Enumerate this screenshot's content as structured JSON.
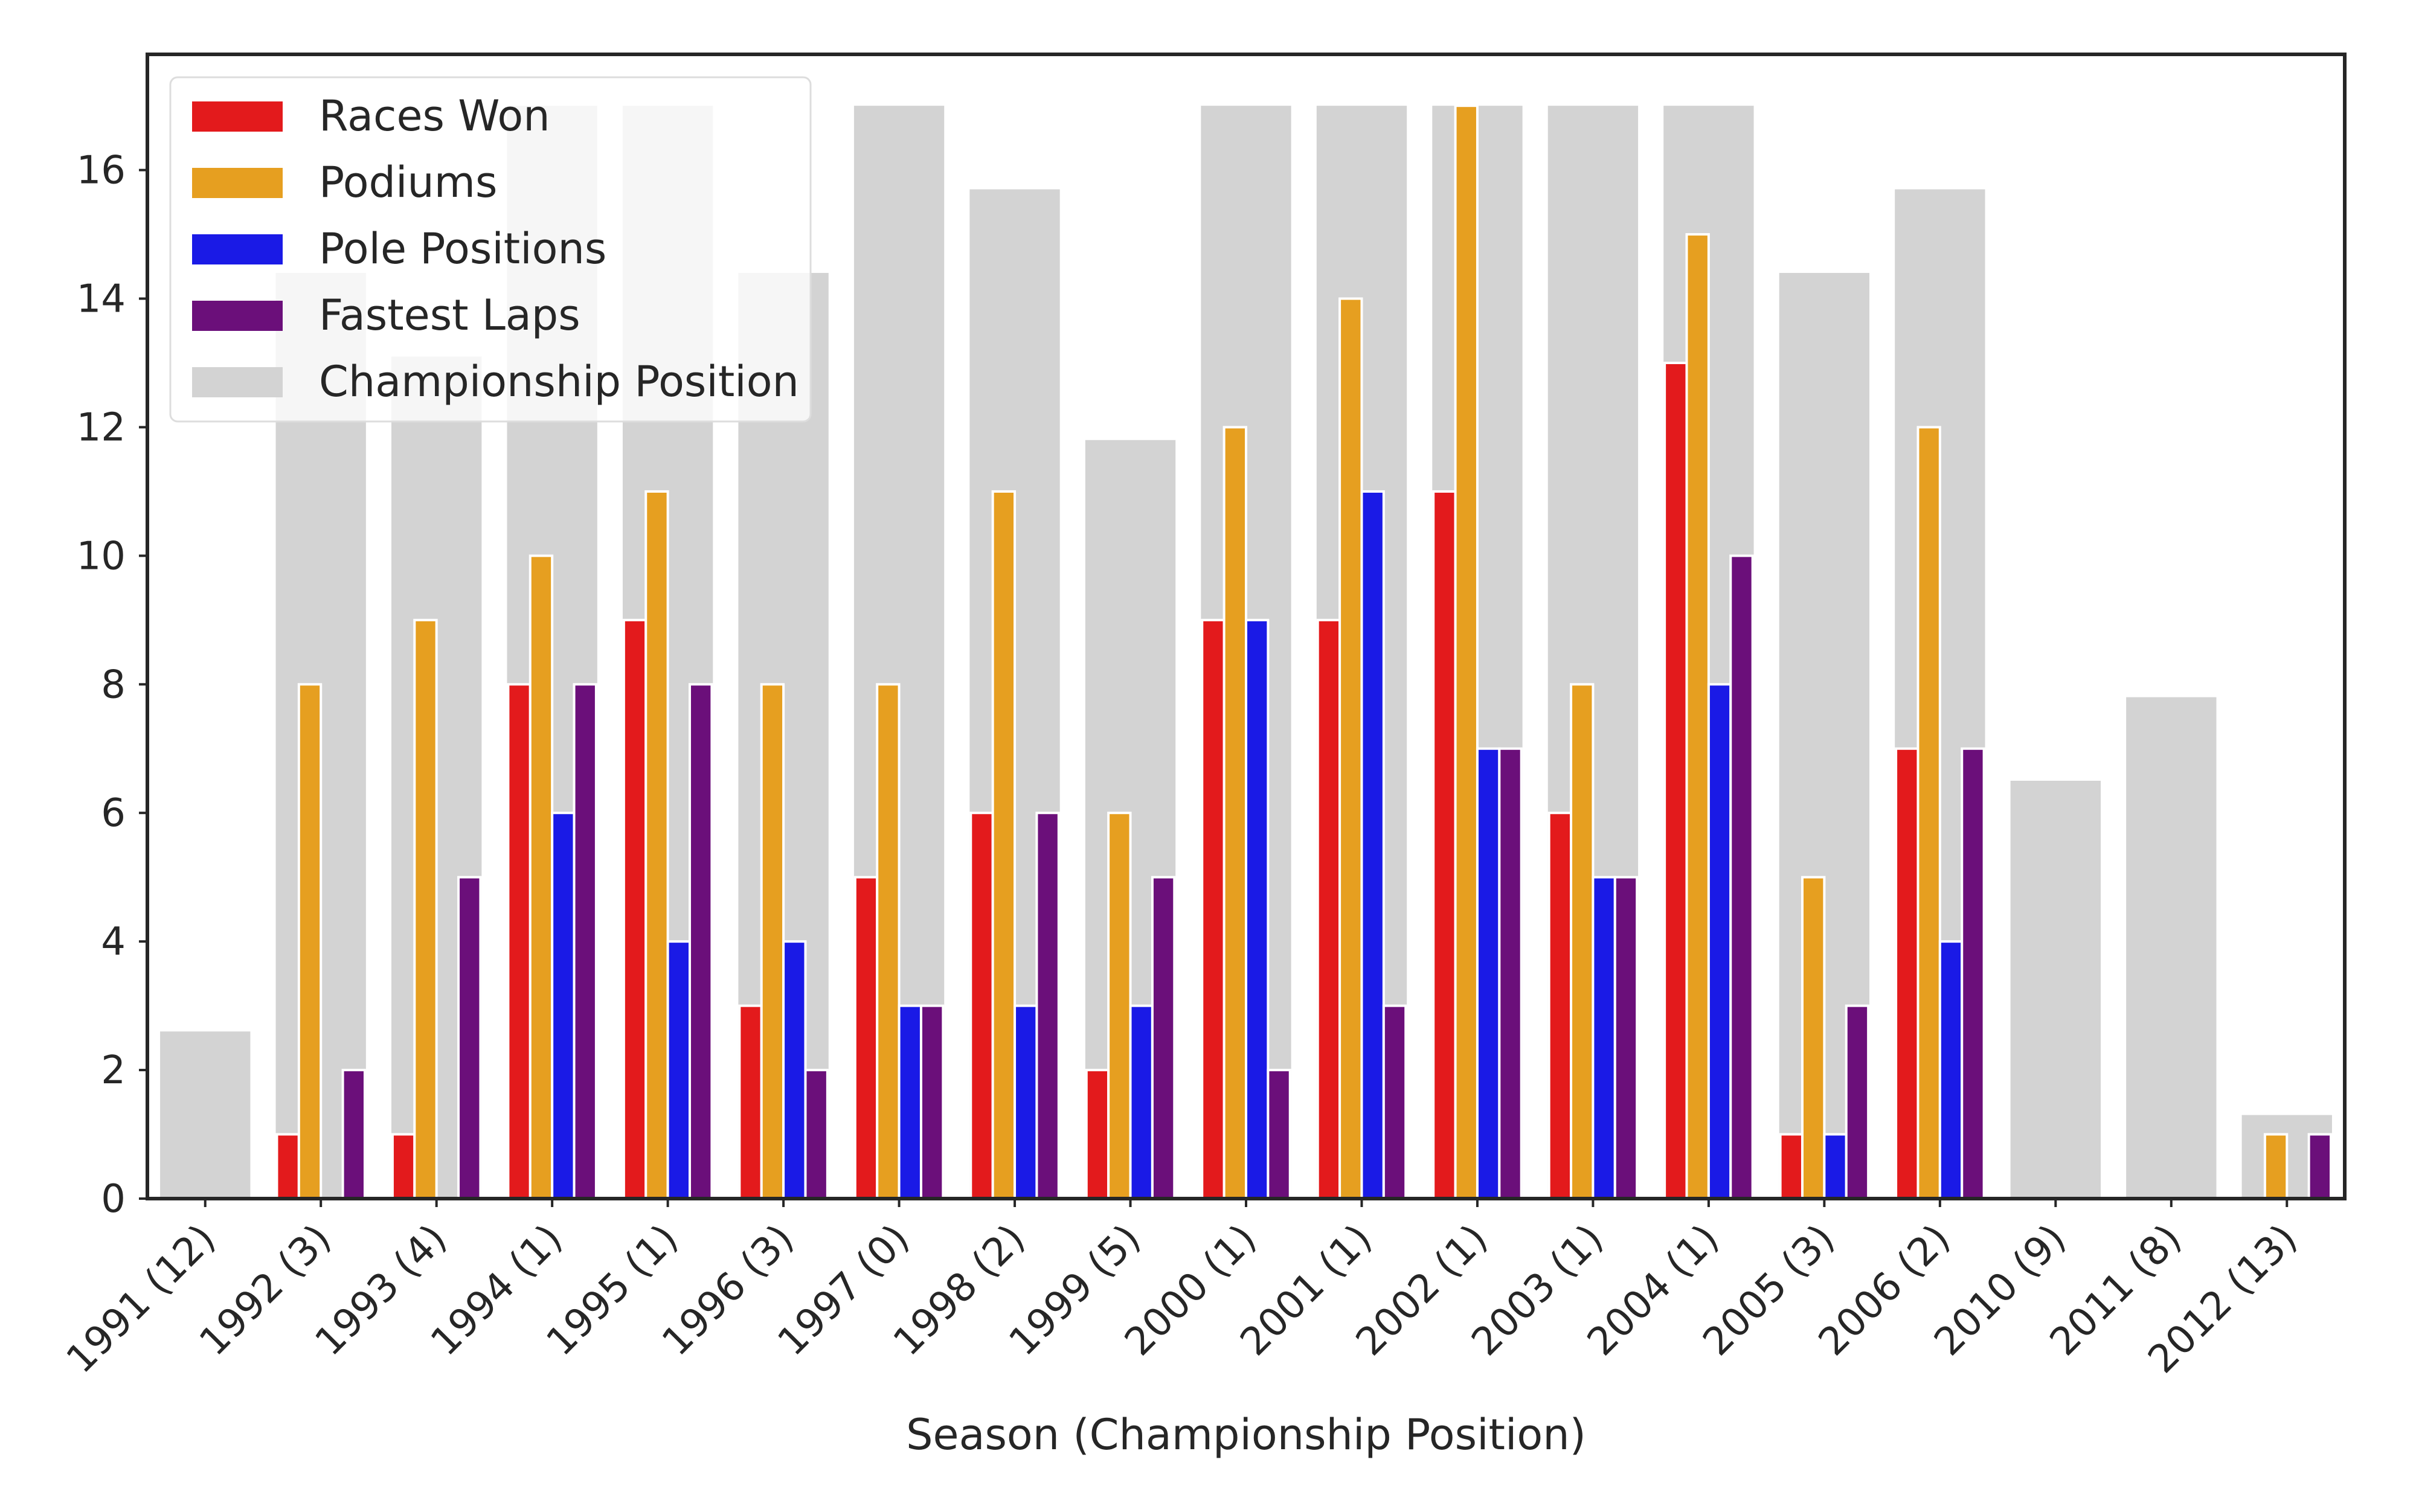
{
  "chart_data": {
    "type": "bar",
    "title": "",
    "xlabel": "Season (Championship Position)",
    "ylabel": "",
    "ylim": [
      0,
      17.8
    ],
    "yticks": [
      0,
      2,
      4,
      6,
      8,
      10,
      12,
      14,
      16
    ],
    "categories": [
      "1991 (12)",
      "1992 (3)",
      "1993 (4)",
      "1994 (1)",
      "1995 (1)",
      "1996 (3)",
      "1997 (0)",
      "1998 (2)",
      "1999 (5)",
      "2000 (1)",
      "2001 (1)",
      "2002 (1)",
      "2003 (1)",
      "2004 (1)",
      "2005 (3)",
      "2006 (2)",
      "2010 (9)",
      "2011 (8)",
      "2012 (13)"
    ],
    "background_series": {
      "name": "Championship Position",
      "color": "#d3d3d3",
      "values": [
        2.6,
        14.4,
        13.1,
        17.0,
        17.0,
        14.4,
        17.0,
        15.7,
        11.8,
        17.0,
        17.0,
        17.0,
        17.0,
        17.0,
        14.4,
        15.7,
        6.5,
        7.8,
        1.3
      ]
    },
    "series": [
      {
        "name": "Races Won",
        "color": "#e31a1c",
        "values": [
          0,
          1,
          1,
          8,
          9,
          3,
          5,
          6,
          2,
          9,
          9,
          11,
          6,
          13,
          1,
          7,
          0,
          0,
          0
        ]
      },
      {
        "name": "Podiums",
        "color": "#e69f20",
        "values": [
          0,
          8,
          9,
          10,
          11,
          8,
          8,
          11,
          6,
          12,
          14,
          17,
          8,
          15,
          5,
          12,
          0,
          0,
          1
        ]
      },
      {
        "name": "Pole Positions",
        "color": "#1a1ae6",
        "values": [
          0,
          0,
          0,
          6,
          4,
          4,
          3,
          3,
          3,
          9,
          11,
          7,
          5,
          8,
          1,
          4,
          0,
          0,
          0
        ]
      },
      {
        "name": "Fastest Laps",
        "color": "#6b0f7a",
        "values": [
          0,
          2,
          5,
          8,
          8,
          2,
          3,
          6,
          5,
          2,
          3,
          7,
          5,
          10,
          3,
          7,
          0,
          0,
          1
        ]
      }
    ],
    "legend_position": "top-left",
    "grid": false
  }
}
